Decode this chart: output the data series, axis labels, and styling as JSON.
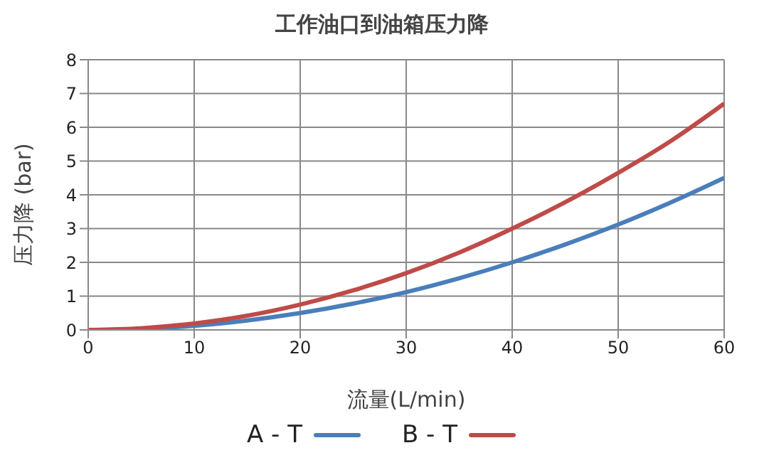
{
  "chart_data": {
    "type": "line",
    "title": "工作油口到油箱压力降",
    "xlabel": "流量(L/min)",
    "ylabel": "压力降 (bar)",
    "x": [
      0,
      5,
      10,
      15,
      20,
      25,
      30,
      35,
      40,
      45,
      50,
      55,
      60
    ],
    "series": [
      {
        "name": "A - T",
        "color": "#4a7ebb",
        "values": [
          0,
          0.03,
          0.12,
          0.28,
          0.5,
          0.78,
          1.12,
          1.53,
          2.0,
          2.53,
          3.12,
          3.78,
          4.5
        ]
      },
      {
        "name": "B - T",
        "color": "#be4b48",
        "values": [
          0,
          0.05,
          0.19,
          0.42,
          0.75,
          1.17,
          1.68,
          2.29,
          3.0,
          3.78,
          4.65,
          5.6,
          6.7
        ]
      }
    ],
    "xlim": [
      0,
      60
    ],
    "xticks": [
      0,
      10,
      20,
      30,
      40,
      50,
      60
    ],
    "ylim": [
      0,
      8
    ],
    "yticks": [
      0,
      1,
      2,
      3,
      4,
      5,
      6,
      7,
      8
    ],
    "grid": true,
    "legend": "bottom",
    "marker": "none",
    "line_style": "solid"
  }
}
